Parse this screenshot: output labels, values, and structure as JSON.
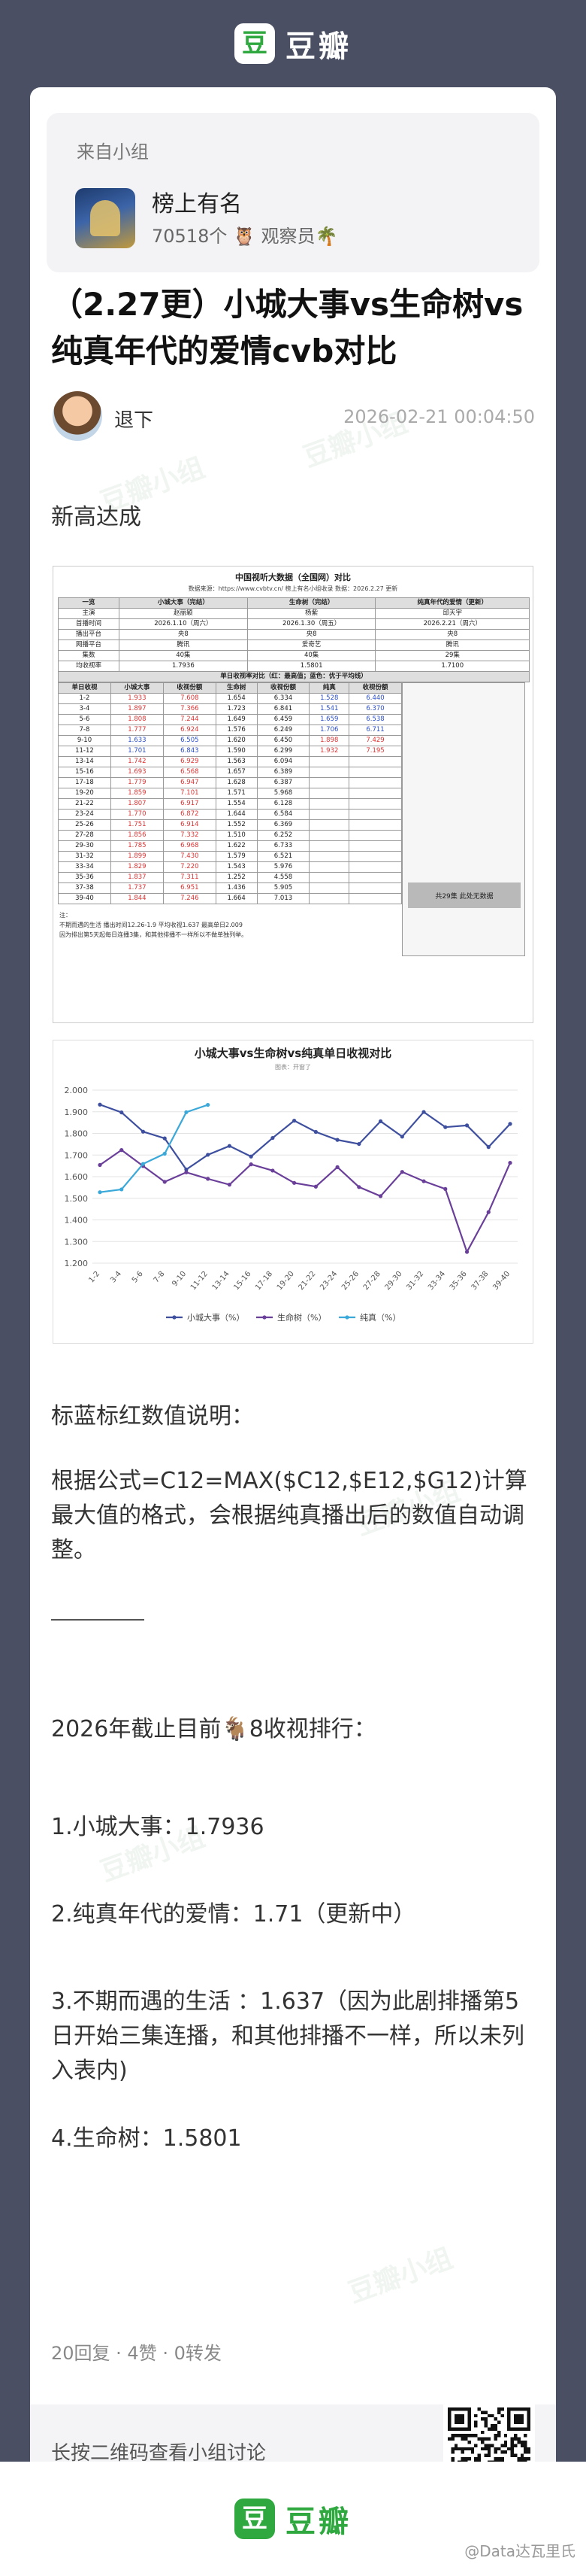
{
  "header": {
    "logo_glyph": "豆",
    "brand": "豆瓣"
  },
  "group": {
    "from_label": "来自小组",
    "name": "榜上有名",
    "members": "70518个 🦉 观察员🌴"
  },
  "post": {
    "title": "（2.27更）小城大事vs生命树vs纯真年代的爱情cvb对比",
    "author": "退下",
    "time": "2026-02-21 00:04:50",
    "line1": "新高达成",
    "explain_title": "标蓝标红数值说明：",
    "explain_body": "根据公式=C12=MAX($C12,$E12,$G12)计算最大值的格式，会根据纯真播出后的数值自动调整。",
    "divider": "———",
    "ranking_title": "2026年截止目前🐐8收视排行：",
    "rank1": "1.小城大事：1.7936",
    "rank2": "2.纯真年代的爱情：1.71（更新中）",
    "rank3": "3.不期而遇的生活 ：1.637（因为此剧排播第5日开始三集连播，和其他排播不一样，所以未列入表内)",
    "rank4": "4.生命树：1.5801",
    "stats": "20回复 · 4赞 · 0转发"
  },
  "data_table": {
    "title": "中国视听大数据（全国网）对比",
    "source": "数据来源：https://www.cvbtv.cn/ 榜上有名小组收录 数据：2026.2.27 更新",
    "head": [
      "一览",
      "小城大事（完结）",
      "生命树（完结）",
      "纯真年代的爱情（更新）"
    ],
    "info_rows": [
      [
        "主演",
        "赵丽颖",
        "杨紫",
        "邱天宇"
      ],
      [
        "首播时间",
        "2026.1.10（周六）",
        "2026.1.30（周五）",
        "2026.2.21（周六）"
      ],
      [
        "播出平台",
        "央8",
        "央8",
        "央8"
      ],
      [
        "网播平台",
        "腾讯",
        "爱奇艺",
        "腾讯"
      ],
      [
        "集数",
        "40集",
        "40集",
        "29集"
      ],
      [
        "均收视率",
        "1.7936",
        "1.5801",
        "1.7100"
      ]
    ],
    "daily_title": "单日收视率对比（红：最高值；蓝色：优于平均线）",
    "daily_head": [
      "单日收视",
      "小城大事",
      "收视份额",
      "生命树",
      "收视份额",
      "纯真",
      "收视份额"
    ],
    "daily_rows": [
      [
        "1-2",
        "1.933",
        "7.608",
        "1.654",
        "6.334",
        "1.528",
        "6.440"
      ],
      [
        "3-4",
        "1.897",
        "7.366",
        "1.723",
        "6.841",
        "1.541",
        "6.370"
      ],
      [
        "5-6",
        "1.808",
        "7.244",
        "1.649",
        "6.459",
        "1.659",
        "6.538"
      ],
      [
        "7-8",
        "1.777",
        "6.924",
        "1.576",
        "6.249",
        "1.706",
        "6.711"
      ],
      [
        "9-10",
        "1.633",
        "6.505",
        "1.620",
        "6.450",
        "1.898",
        "7.429"
      ],
      [
        "11-12",
        "1.701",
        "6.843",
        "1.590",
        "6.299",
        "1.932",
        "7.195"
      ],
      [
        "13-14",
        "1.742",
        "6.929",
        "1.563",
        "6.094",
        "",
        ""
      ],
      [
        "15-16",
        "1.693",
        "6.568",
        "1.657",
        "6.389",
        "",
        ""
      ],
      [
        "17-18",
        "1.779",
        "6.947",
        "1.628",
        "6.387",
        "",
        ""
      ],
      [
        "19-20",
        "1.859",
        "7.101",
        "1.571",
        "5.968",
        "",
        ""
      ],
      [
        "21-22",
        "1.807",
        "6.917",
        "1.554",
        "6.128",
        "",
        ""
      ],
      [
        "23-24",
        "1.770",
        "6.872",
        "1.644",
        "6.584",
        "",
        ""
      ],
      [
        "25-26",
        "1.751",
        "6.914",
        "1.552",
        "6.369",
        "",
        ""
      ],
      [
        "27-28",
        "1.856",
        "7.332",
        "1.510",
        "6.252",
        "",
        ""
      ],
      [
        "29-30",
        "1.785",
        "6.968",
        "1.622",
        "6.733",
        "",
        ""
      ],
      [
        "31-32",
        "1.899",
        "7.430",
        "1.579",
        "6.521",
        "",
        ""
      ],
      [
        "33-34",
        "1.829",
        "7.220",
        "1.543",
        "5.976",
        "",
        ""
      ],
      [
        "35-36",
        "1.837",
        "7.311",
        "1.252",
        "4.558",
        "",
        ""
      ],
      [
        "37-38",
        "1.737",
        "6.951",
        "1.436",
        "5.905",
        "",
        ""
      ],
      [
        "39-40",
        "1.844",
        "7.246",
        "1.664",
        "7.013",
        "",
        ""
      ]
    ],
    "extra_note": "共29集 此处无数据",
    "notes": [
      "注：",
      "不期而遇的生活 播出时间12.26-1.9 平均收视1.637 最高单日2.009",
      "因为排出第5天起每日连播3集，和其他排播不一样所以不做单独列举。"
    ]
  },
  "chart_data": {
    "type": "line",
    "title": "小城大事vs生命树vs纯真单日收视对比",
    "subtitle": "图表：开窗了",
    "categories": [
      "1-2",
      "3-4",
      "5-6",
      "7-8",
      "9-10",
      "11-12",
      "13-14",
      "15-16",
      "17-18",
      "19-20",
      "21-22",
      "23-24",
      "25-26",
      "27-28",
      "29-30",
      "31-32",
      "33-34",
      "35-36",
      "37-38",
      "39-40"
    ],
    "ylim": [
      1.2,
      2.0
    ],
    "yticks": [
      "2.000",
      "1.900",
      "1.800",
      "1.700",
      "1.600",
      "1.500",
      "1.400",
      "1.300",
      "1.200"
    ],
    "legend": [
      "小城大事（%）",
      "生命树（%）",
      "纯真（%）"
    ],
    "legend_position": "bottom",
    "grid": true,
    "series": [
      {
        "name": "小城大事（%）",
        "color": "#3d4f9e",
        "values": [
          1.933,
          1.897,
          1.808,
          1.777,
          1.633,
          1.701,
          1.742,
          1.693,
          1.779,
          1.859,
          1.807,
          1.77,
          1.751,
          1.856,
          1.785,
          1.899,
          1.829,
          1.837,
          1.737,
          1.844
        ]
      },
      {
        "name": "生命树（%）",
        "color": "#6a3f9a",
        "values": [
          1.654,
          1.723,
          1.649,
          1.576,
          1.62,
          1.59,
          1.563,
          1.657,
          1.628,
          1.571,
          1.554,
          1.644,
          1.552,
          1.51,
          1.622,
          1.579,
          1.543,
          1.252,
          1.436,
          1.664
        ]
      },
      {
        "name": "纯真（%）",
        "color": "#3aa8d8",
        "values": [
          1.528,
          1.541,
          1.659,
          1.706,
          1.898,
          1.932,
          null,
          null,
          null,
          null,
          null,
          null,
          null,
          null,
          null,
          null,
          null,
          null,
          null,
          null
        ]
      }
    ]
  },
  "qr": {
    "text": "长按二维码查看小组讨论"
  },
  "footer": {
    "logo_glyph": "豆",
    "brand": "豆瓣",
    "credit": "@Data达瓦里氏"
  }
}
